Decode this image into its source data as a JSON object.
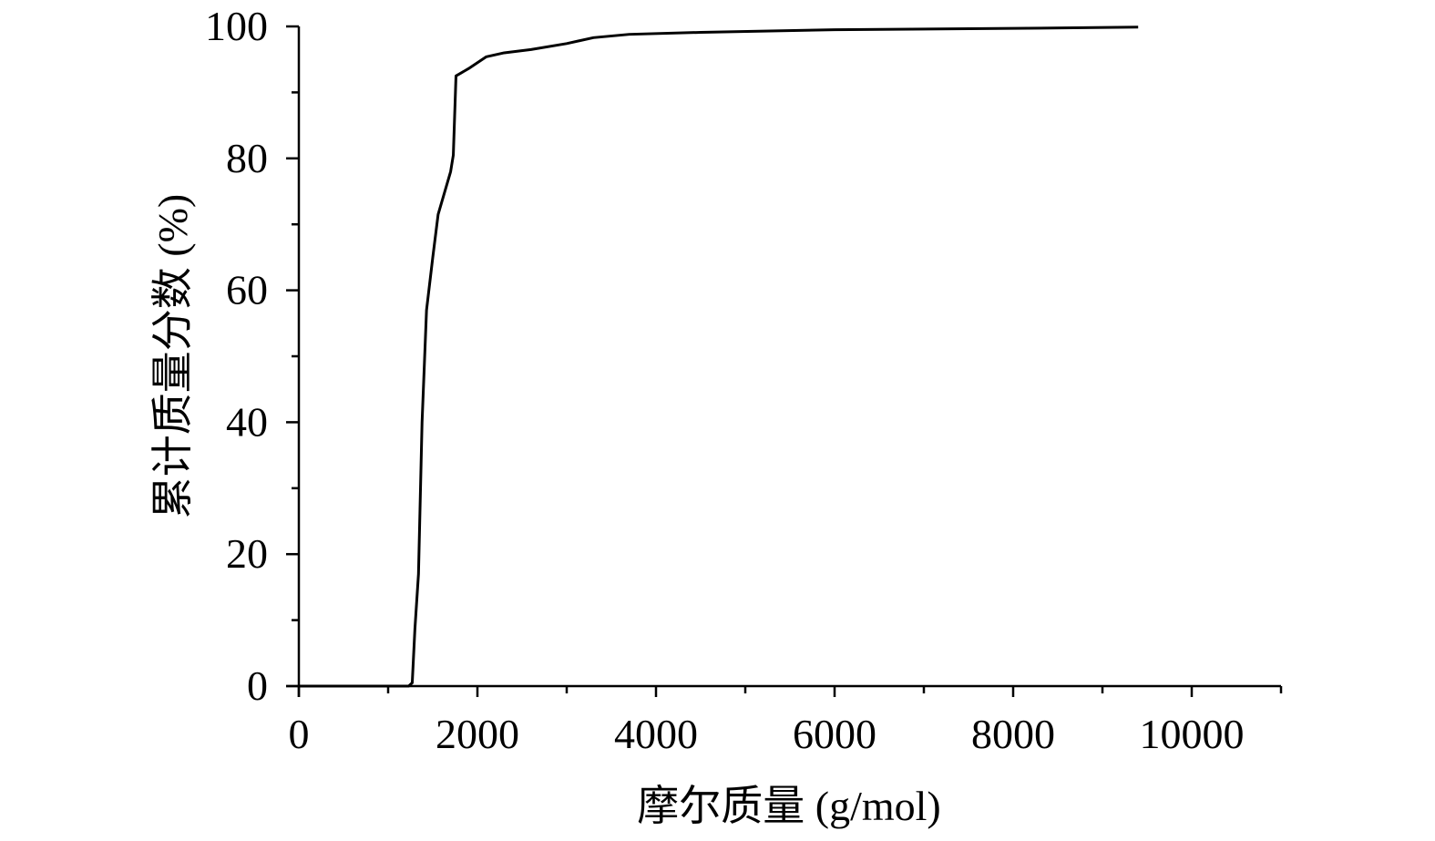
{
  "chart_data": {
    "type": "line",
    "x_label": "摩尔质量 (g/mol)",
    "y_label": "累计质量分数 (%)",
    "x": [
      0,
      1230,
      1270,
      1300,
      1340,
      1380,
      1430,
      1500,
      1560,
      1700,
      1730,
      1760,
      1900,
      2100,
      2300,
      2600,
      3000,
      3300,
      3700,
      4500,
      6000,
      8000,
      9400
    ],
    "series": [
      {
        "name": "累计质量分数",
        "color": "#000000",
        "values": [
          0,
          0,
          0.5,
          8.7,
          17,
          40,
          57,
          65,
          71.5,
          78,
          80.5,
          92.5,
          93.6,
          95.4,
          96,
          96.5,
          97.4,
          98.3,
          98.8,
          99.1,
          99.5,
          99.7,
          99.9
        ]
      }
    ],
    "xlim": [
      0,
      11000
    ],
    "ylim": [
      0,
      100
    ],
    "xticks": [
      0,
      2000,
      4000,
      6000,
      8000,
      10000
    ],
    "yticks": [
      0,
      20,
      40,
      60,
      80,
      100
    ],
    "xminor_ticks": [
      1000,
      3000,
      5000,
      7000,
      9000,
      11000
    ],
    "yminor_ticks": [
      10,
      30,
      50,
      70,
      90
    ],
    "grid": false
  }
}
